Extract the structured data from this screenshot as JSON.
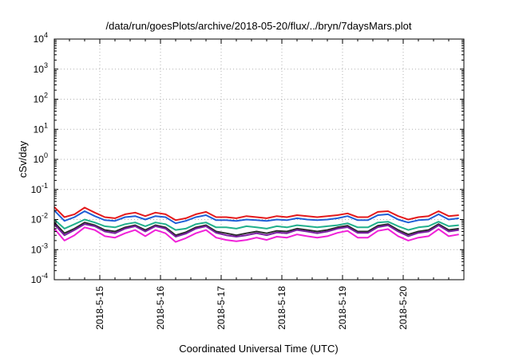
{
  "chart_data": {
    "type": "line",
    "title": "/data/run/goesPlots/archive/2018-05-20/flux/../bryn/7daysMars.plot",
    "xlabel": "Coordinated Universal Time (UTC)",
    "ylabel": "cSv/day",
    "yscale": "log",
    "ylim": [
      0.0001,
      10000
    ],
    "xlim": [
      "2018-05-14T06:00",
      "2018-05-21T00:00"
    ],
    "grid": true,
    "legend": "none",
    "x_tick_labels": [
      "2018-5-15",
      "2018-5-16",
      "2018-5-17",
      "2018-5-18",
      "2018-5-19",
      "2018-5-20"
    ],
    "y_tick_labels": [
      {
        "base": "10",
        "exp": "-4"
      },
      {
        "base": "10",
        "exp": "-3"
      },
      {
        "base": "10",
        "exp": "-2"
      },
      {
        "base": "10",
        "exp": "-1"
      },
      {
        "base": "10",
        "exp": "0"
      },
      {
        "base": "10",
        "exp": "1"
      },
      {
        "base": "10",
        "exp": "2"
      },
      {
        "base": "10",
        "exp": "3"
      },
      {
        "base": "10",
        "exp": "4"
      }
    ],
    "x": [
      "2018-05-14T06:00",
      "2018-05-14T10:00",
      "2018-05-14T14:00",
      "2018-05-14T18:00",
      "2018-05-14T22:00",
      "2018-05-15T02:00",
      "2018-05-15T06:00",
      "2018-05-15T10:00",
      "2018-05-15T14:00",
      "2018-05-15T18:00",
      "2018-05-15T22:00",
      "2018-05-16T02:00",
      "2018-05-16T06:00",
      "2018-05-16T10:00",
      "2018-05-16T14:00",
      "2018-05-16T18:00",
      "2018-05-16T22:00",
      "2018-05-17T02:00",
      "2018-05-17T06:00",
      "2018-05-17T10:00",
      "2018-05-17T14:00",
      "2018-05-17T18:00",
      "2018-05-17T22:00",
      "2018-05-18T02:00",
      "2018-05-18T06:00",
      "2018-05-18T10:00",
      "2018-05-18T14:00",
      "2018-05-18T18:00",
      "2018-05-18T22:00",
      "2018-05-19T02:00",
      "2018-05-19T06:00",
      "2018-05-19T10:00",
      "2018-05-19T14:00",
      "2018-05-19T18:00",
      "2018-05-19T22:00",
      "2018-05-20T02:00",
      "2018-05-20T06:00",
      "2018-05-20T10:00",
      "2018-05-20T14:00",
      "2018-05-20T18:00",
      "2018-05-20T22:00"
    ],
    "series": [
      {
        "color": "#e41a1c",
        "values": [
          0.026,
          0.012,
          0.015,
          0.025,
          0.017,
          0.012,
          0.011,
          0.015,
          0.017,
          0.013,
          0.017,
          0.015,
          0.0095,
          0.011,
          0.015,
          0.018,
          0.012,
          0.012,
          0.011,
          0.013,
          0.012,
          0.011,
          0.013,
          0.012,
          0.014,
          0.013,
          0.012,
          0.013,
          0.014,
          0.016,
          0.012,
          0.012,
          0.018,
          0.019,
          0.013,
          0.01,
          0.012,
          0.013,
          0.019,
          0.013,
          0.014
        ]
      },
      {
        "color": "#1f5fd6",
        "values": [
          0.02,
          0.009,
          0.012,
          0.019,
          0.013,
          0.0095,
          0.009,
          0.012,
          0.013,
          0.01,
          0.013,
          0.012,
          0.0075,
          0.009,
          0.012,
          0.014,
          0.0095,
          0.0095,
          0.009,
          0.01,
          0.0095,
          0.009,
          0.01,
          0.0095,
          0.011,
          0.01,
          0.0095,
          0.01,
          0.011,
          0.013,
          0.0095,
          0.0095,
          0.014,
          0.015,
          0.01,
          0.008,
          0.0095,
          0.01,
          0.015,
          0.01,
          0.011
        ]
      },
      {
        "color": "#21b08c",
        "values": [
          0.01,
          0.005,
          0.007,
          0.01,
          0.008,
          0.006,
          0.0055,
          0.007,
          0.008,
          0.006,
          0.008,
          0.007,
          0.0045,
          0.005,
          0.007,
          0.008,
          0.0055,
          0.0055,
          0.005,
          0.006,
          0.0055,
          0.005,
          0.006,
          0.0055,
          0.0065,
          0.006,
          0.0055,
          0.006,
          0.0065,
          0.0075,
          0.0055,
          0.0055,
          0.008,
          0.0085,
          0.006,
          0.0045,
          0.0055,
          0.006,
          0.0085,
          0.006,
          0.0065
        ]
      },
      {
        "color": "#2b2b2b",
        "values": [
          0.008,
          0.0035,
          0.005,
          0.008,
          0.0065,
          0.0045,
          0.004,
          0.0055,
          0.0065,
          0.0045,
          0.0065,
          0.0055,
          0.003,
          0.0038,
          0.0055,
          0.0065,
          0.004,
          0.0035,
          0.003,
          0.0035,
          0.004,
          0.0035,
          0.0042,
          0.004,
          0.005,
          0.0045,
          0.004,
          0.0045,
          0.0055,
          0.0062,
          0.004,
          0.004,
          0.0062,
          0.007,
          0.0045,
          0.0032,
          0.004,
          0.0045,
          0.007,
          0.0045,
          0.005
        ]
      },
      {
        "color": "#7a1fa2",
        "values": [
          0.007,
          0.003,
          0.0045,
          0.007,
          0.006,
          0.004,
          0.0035,
          0.005,
          0.006,
          0.004,
          0.006,
          0.005,
          0.0027,
          0.0034,
          0.005,
          0.006,
          0.0036,
          0.003,
          0.0027,
          0.003,
          0.0035,
          0.003,
          0.0037,
          0.0035,
          0.0045,
          0.004,
          0.0035,
          0.004,
          0.005,
          0.0056,
          0.0036,
          0.0036,
          0.0056,
          0.0064,
          0.004,
          0.0028,
          0.0036,
          0.004,
          0.0064,
          0.004,
          0.0045
        ]
      },
      {
        "color": "#f021d8",
        "values": [
          0.005,
          0.002,
          0.003,
          0.0055,
          0.0045,
          0.0028,
          0.0025,
          0.0035,
          0.0045,
          0.0028,
          0.0045,
          0.0035,
          0.0018,
          0.0024,
          0.0035,
          0.0045,
          0.0025,
          0.0021,
          0.0019,
          0.0021,
          0.0025,
          0.0021,
          0.0027,
          0.0025,
          0.0032,
          0.0028,
          0.0025,
          0.0028,
          0.0036,
          0.0042,
          0.0025,
          0.0025,
          0.0042,
          0.0048,
          0.0028,
          0.002,
          0.0025,
          0.0028,
          0.0048,
          0.0028,
          0.0032
        ]
      }
    ]
  }
}
